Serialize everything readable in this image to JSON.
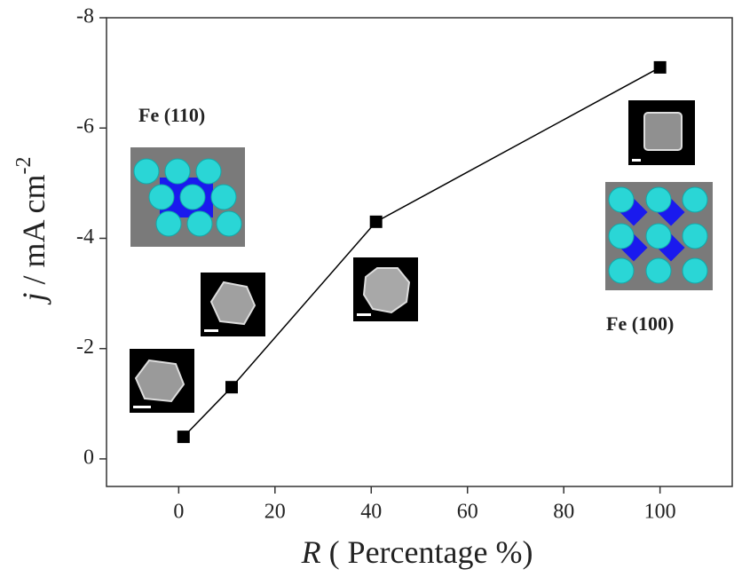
{
  "chart_data": {
    "type": "line",
    "x_label_parts": [
      "R",
      " ( Percentage %)"
    ],
    "y_label_parts": [
      "j",
      " / mA cm",
      "-2"
    ],
    "annotations": [
      "Fe (110)",
      "Fe (100)"
    ],
    "x": [
      1,
      11,
      41,
      100
    ],
    "series": [
      {
        "color": "#000000",
        "values": [
          -0.4,
          -1.3,
          -4.3,
          -7.1
        ]
      }
    ],
    "xlim": [
      -15,
      115
    ],
    "xticks": [
      0,
      20,
      40,
      60,
      80,
      100
    ],
    "ylim": [
      0.5,
      -8
    ],
    "yticks": [
      0,
      -2,
      -4,
      -6,
      -8
    ],
    "grid": false
  }
}
